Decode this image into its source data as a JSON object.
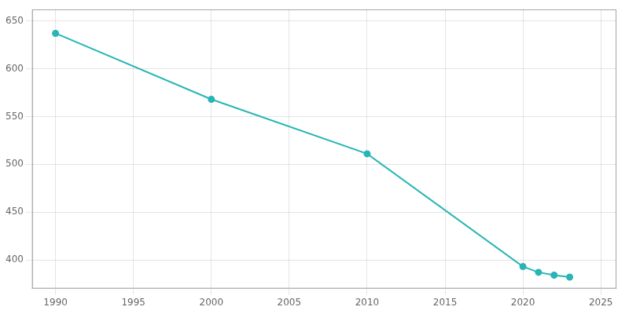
{
  "chart_data": {
    "type": "line",
    "x": [
      1990,
      2000,
      2010,
      2020,
      2021,
      2022,
      2023
    ],
    "values": [
      637,
      568,
      511,
      393,
      387,
      384,
      382
    ],
    "color": "#28b5b5",
    "marker": "o",
    "xlim": [
      1988.5,
      2026
    ],
    "ylim": [
      370,
      662
    ],
    "xticks": [
      1990,
      1995,
      2000,
      2005,
      2010,
      2015,
      2020,
      2025
    ],
    "yticks": [
      400,
      450,
      500,
      550,
      600,
      650
    ],
    "grid": true
  }
}
